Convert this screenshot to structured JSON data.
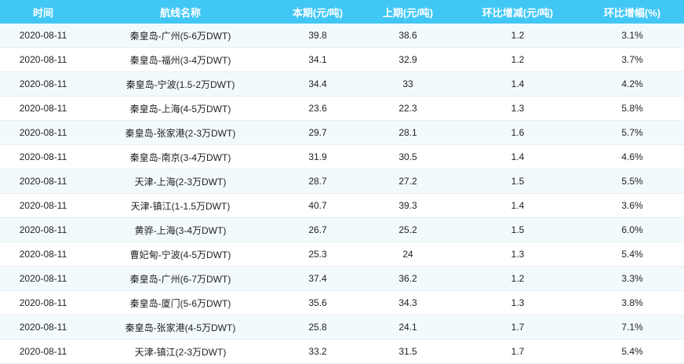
{
  "headers": [
    "时间",
    "航线名称",
    "本期(元/吨)",
    "上期(元/吨)",
    "环比增减(元/吨)",
    "环比增幅(%)"
  ],
  "rows": [
    [
      "2020-08-11",
      "秦皇岛-广州(5-6万DWT)",
      "39.8",
      "38.6",
      "1.2",
      "3.1%"
    ],
    [
      "2020-08-11",
      "秦皇岛-福州(3-4万DWT)",
      "34.1",
      "32.9",
      "1.2",
      "3.7%"
    ],
    [
      "2020-08-11",
      "秦皇岛-宁波(1.5-2万DWT)",
      "34.4",
      "33",
      "1.4",
      "4.2%"
    ],
    [
      "2020-08-11",
      "秦皇岛-上海(4-5万DWT)",
      "23.6",
      "22.3",
      "1.3",
      "5.8%"
    ],
    [
      "2020-08-11",
      "秦皇岛-张家港(2-3万DWT)",
      "29.7",
      "28.1",
      "1.6",
      "5.7%"
    ],
    [
      "2020-08-11",
      "秦皇岛-南京(3-4万DWT)",
      "31.9",
      "30.5",
      "1.4",
      "4.6%"
    ],
    [
      "2020-08-11",
      "天津-上海(2-3万DWT)",
      "28.7",
      "27.2",
      "1.5",
      "5.5%"
    ],
    [
      "2020-08-11",
      "天津-镇江(1-1.5万DWT)",
      "40.7",
      "39.3",
      "1.4",
      "3.6%"
    ],
    [
      "2020-08-11",
      "黄骅-上海(3-4万DWT)",
      "26.7",
      "25.2",
      "1.5",
      "6.0%"
    ],
    [
      "2020-08-11",
      "曹妃甸-宁波(4-5万DWT)",
      "25.3",
      "24",
      "1.3",
      "5.4%"
    ],
    [
      "2020-08-11",
      "秦皇岛-广州(6-7万DWT)",
      "37.4",
      "36.2",
      "1.2",
      "3.3%"
    ],
    [
      "2020-08-11",
      "秦皇岛-厦门(5-6万DWT)",
      "35.6",
      "34.3",
      "1.3",
      "3.8%"
    ],
    [
      "2020-08-11",
      "秦皇岛-张家港(4-5万DWT)",
      "25.8",
      "24.1",
      "1.7",
      "7.1%"
    ],
    [
      "2020-08-11",
      "天津-镇江(2-3万DWT)",
      "33.2",
      "31.5",
      "1.7",
      "5.4%"
    ]
  ],
  "colors": {
    "header": "#41c7f5",
    "stripe": "#f3fafe"
  }
}
